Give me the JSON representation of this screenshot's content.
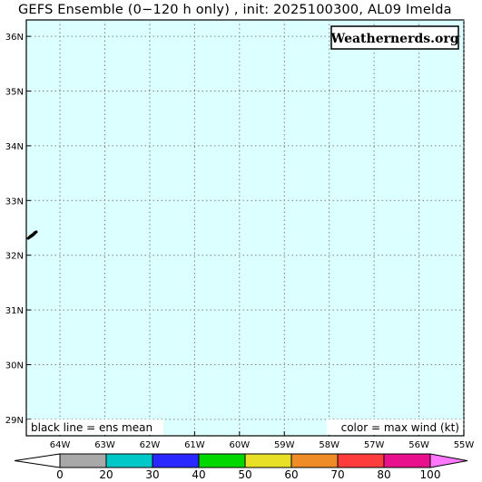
{
  "title": "GEFS Ensemble (0−120 h only) , init: 2025100300, AL09 Imelda",
  "branding": "Weathernerds.org",
  "notes": {
    "left": "black line = ens mean",
    "right": "color = max wind (kt)"
  },
  "map": {
    "ocean_color": "#dcffff",
    "lat_labels": [
      "36N",
      "35N",
      "34N",
      "33N",
      "32N",
      "31N",
      "30N",
      "29N"
    ],
    "lat_values": [
      36,
      35,
      34,
      33,
      32,
      31,
      30,
      29
    ],
    "lon_labels": [
      "64W",
      "63W",
      "62W",
      "61W",
      "60W",
      "59W",
      "58W",
      "57W",
      "56W",
      "55W"
    ],
    "lon_values": [
      -64,
      -63,
      -62,
      -61,
      -60,
      -59,
      -58,
      -57,
      -56,
      -55
    ],
    "lat_range": [
      28.7,
      36.3
    ],
    "lon_range": [
      -64.75,
      -55.0
    ],
    "island_name": "bermuda-island"
  },
  "colorbar": {
    "ticks": [
      "0",
      "20",
      "30",
      "40",
      "50",
      "60",
      "70",
      "80",
      "100"
    ],
    "colors": [
      "#ffffff",
      "#a8a8a8",
      "#00c8c8",
      "#2828ff",
      "#00d800",
      "#e8e028",
      "#f08c28",
      "#ff3c3c",
      "#e8108c",
      "#ff78ff"
    ]
  }
}
